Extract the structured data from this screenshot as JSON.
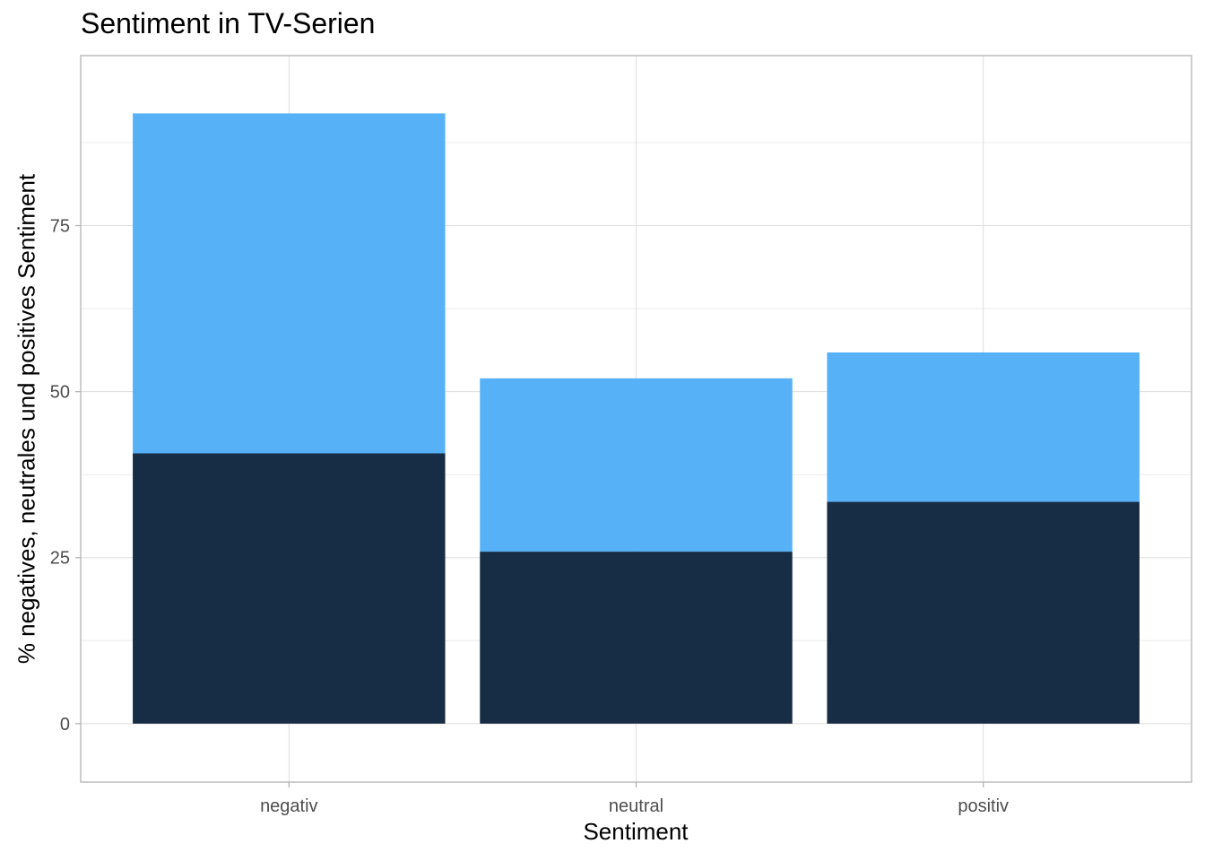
{
  "chart_data": {
    "type": "bar",
    "stacked": true,
    "title": "Sentiment in TV-Serien",
    "xlabel": "Sentiment",
    "ylabel": "% negatives, neutrales und positives Sentiment",
    "categories": [
      "negativ",
      "neutral",
      "positiv"
    ],
    "series": [
      {
        "values": [
          40.7,
          25.9,
          33.4
        ],
        "color": "#172C45"
      },
      {
        "values": [
          51.2,
          26.1,
          22.5
        ],
        "color": "#56B1F7"
      }
    ],
    "totals": [
      91.9,
      52.0,
      55.9
    ],
    "ylim": [
      -8.8,
      100.6
    ],
    "yticks": [
      0,
      25,
      50,
      75
    ],
    "ytick_labels": [
      "0",
      "25",
      "50",
      "75"
    ],
    "grid": true,
    "legend": "none"
  }
}
